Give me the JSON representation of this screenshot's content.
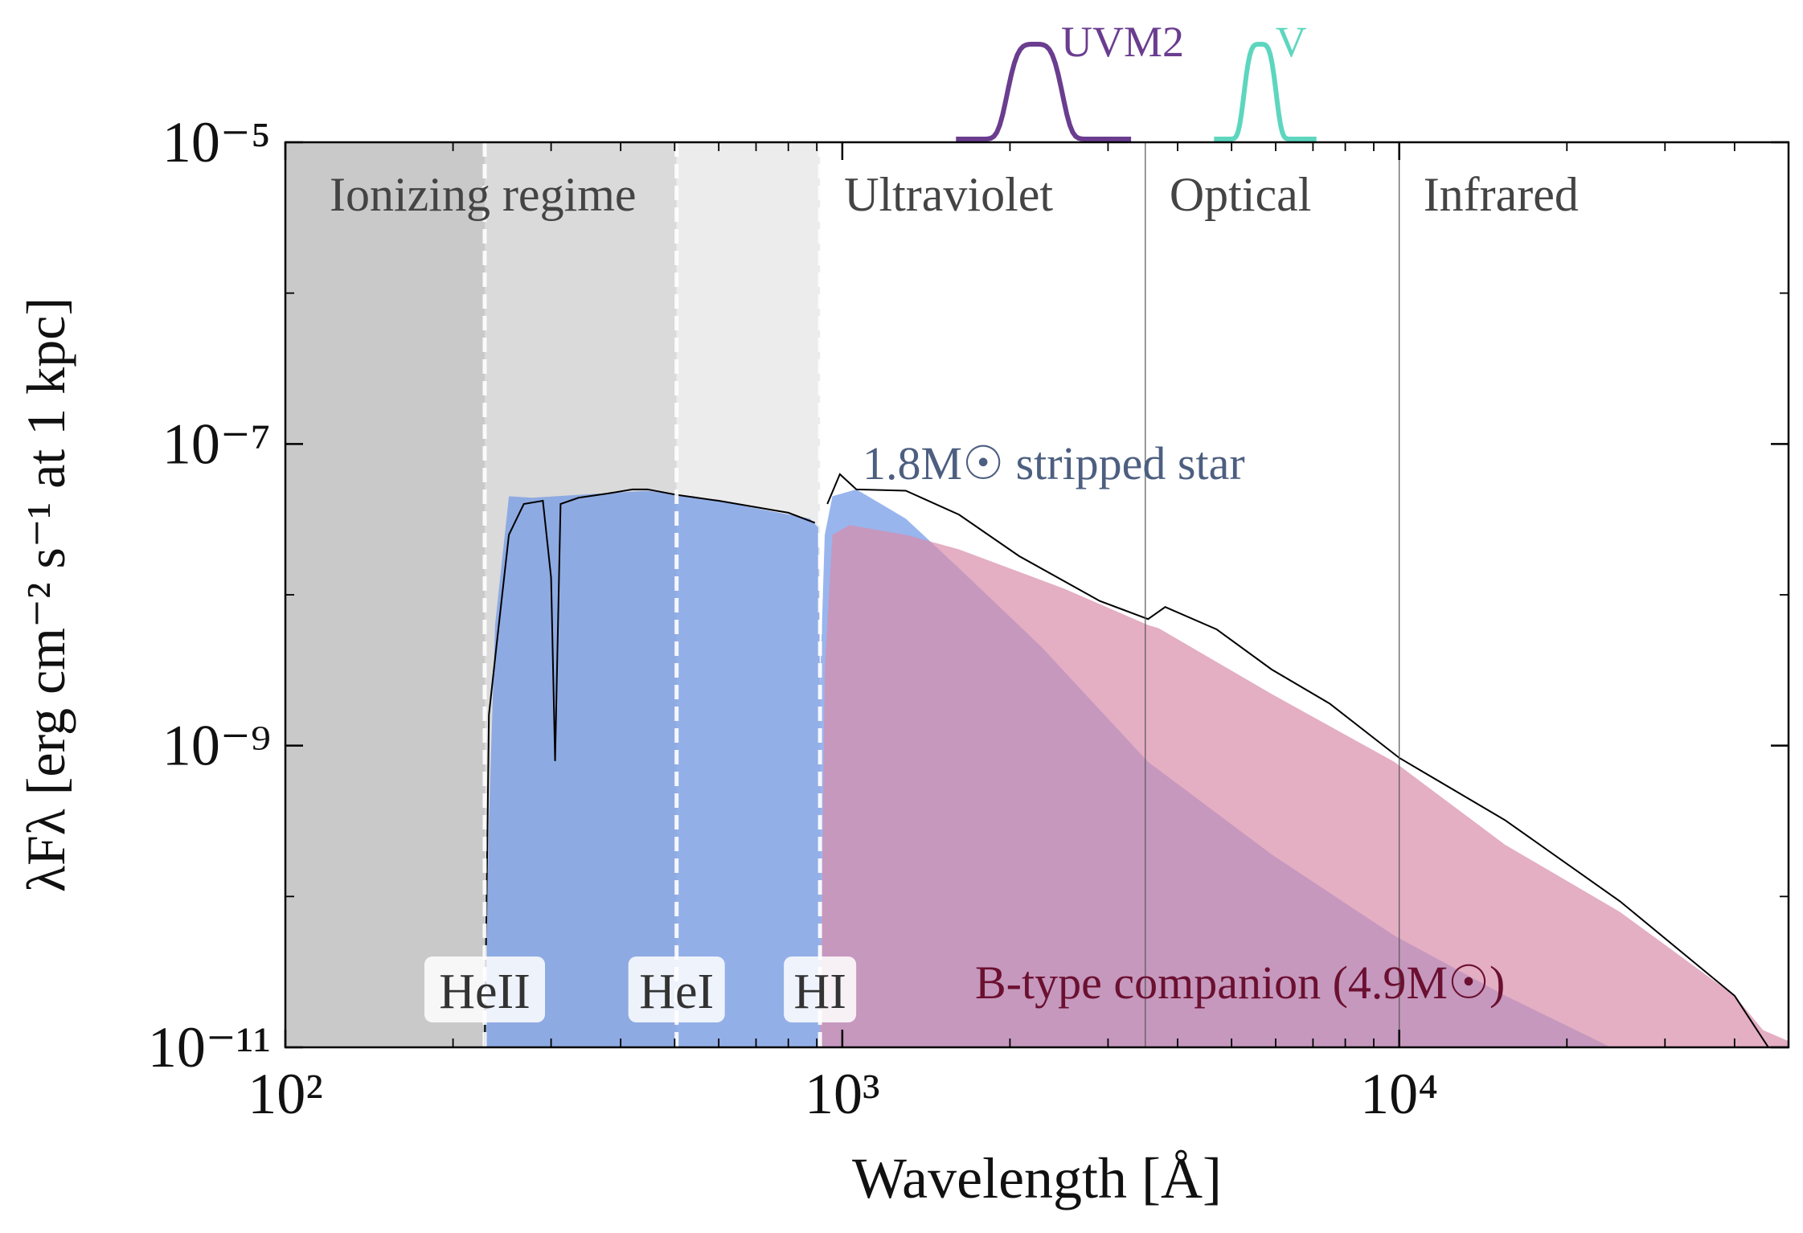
{
  "chart_data": {
    "type": "area",
    "xlabel": "Wavelength [Å]",
    "ylabel": "λFλ [erg cm⁻² s⁻¹ at 1 kpc]",
    "xscale": "log",
    "yscale": "log",
    "xlim": [
      100,
      50000
    ],
    "ylim": [
      1e-11,
      1e-05
    ],
    "xticks": [
      {
        "value": 100,
        "label": "10²"
      },
      {
        "value": 1000,
        "label": "10³"
      },
      {
        "value": 10000,
        "label": "10⁴"
      }
    ],
    "yticks": [
      {
        "value": 1e-11,
        "label": "10⁻¹¹"
      },
      {
        "value": 1e-09,
        "label": "10⁻⁹"
      },
      {
        "value": 1e-07,
        "label": "10⁻⁷"
      },
      {
        "value": 1e-05,
        "label": "10⁻⁵"
      }
    ],
    "xminorticks": [
      200,
      300,
      400,
      500,
      600,
      700,
      800,
      900,
      2000,
      3000,
      4000,
      5000,
      6000,
      7000,
      8000,
      9000,
      20000,
      30000,
      40000
    ],
    "yminorticks": [
      1e-10,
      1e-08,
      1e-06
    ],
    "shading": [
      {
        "x": [
          100,
          228
        ],
        "color": "#c9c9c9"
      },
      {
        "x": [
          228,
          504
        ],
        "color": "#dadada"
      },
      {
        "x": [
          504,
          912
        ],
        "color": "#ececec"
      }
    ],
    "bands": [
      {
        "label": "Ionizing regime",
        "x": [
          100,
          912
        ],
        "divider": false
      },
      {
        "label": "Ultraviolet",
        "x": [
          912,
          3500
        ],
        "divider": false
      },
      {
        "label": "Optical",
        "x": [
          3500,
          10000
        ],
        "divider": true
      },
      {
        "label": "Infrared",
        "x": [
          10000,
          50000
        ],
        "divider": true
      }
    ],
    "edges": [
      {
        "label": "HeII",
        "x": 228
      },
      {
        "label": "HeI",
        "x": 504
      },
      {
        "label": "HI",
        "x": 912
      }
    ],
    "filters": [
      {
        "name": "UVM2",
        "color": "#6a3d8f",
        "x": [
          1600,
          3300
        ]
      },
      {
        "name": "V",
        "color": "#5ed6bf",
        "x": [
          4650,
          7100
        ]
      }
    ],
    "series": [
      {
        "name": "1.8M☉ stripped star",
        "color": "#6e96e6",
        "label_color": "#4d5f80",
        "x": [
          228,
          232,
          238,
          252,
          277,
          336,
          447,
          504,
          540,
          875,
          905,
          912,
          930,
          960,
          1060,
          1300,
          1620,
          2280,
          3540,
          5900,
          9800,
          15500,
          24000
        ],
        "values": [
          1e-11,
          3.2e-10,
          6.3e-09,
          4.5e-08,
          4.4e-08,
          4.6e-08,
          4.9e-08,
          4.6e-08,
          4.5e-08,
          3.2e-08,
          2.8e-08,
          2.5e-09,
          2.5e-08,
          4.5e-08,
          5e-08,
          3.2e-08,
          1.5e-08,
          4.5e-09,
          7.8e-10,
          1.9e-10,
          5.5e-11,
          2.2e-11,
          1e-11
        ]
      },
      {
        "name": "B-type companion (4.9M☉)",
        "color": "#d98caa",
        "label_color": "#6b1030",
        "x": [
          912,
          930,
          960,
          1030,
          1300,
          1620,
          2500,
          3540,
          3700,
          5900,
          9800,
          15500,
          24900,
          40000,
          45000,
          50000
        ],
        "values": [
          1e-11,
          3.2e-09,
          2.5e-08,
          2.9e-08,
          2.5e-08,
          2e-08,
          1.1e-08,
          6.3e-09,
          6e-09,
          2.2e-09,
          7.8e-10,
          2.2e-10,
          7.9e-11,
          2.2e-11,
          1.3e-11,
          1.1e-11
        ]
      },
      {
        "color": "#000000",
        "x": [
          228,
          232,
          240,
          252,
          268,
          290,
          300,
          305,
          312,
          336,
          380,
          420,
          447,
          504,
          600,
          800,
          893,
          912,
          940,
          990,
          1060,
          1300,
          1620,
          2080,
          2900,
          3540,
          3800,
          4700,
          5900,
          7500,
          10000,
          15500,
          24900,
          40000,
          46000
        ],
        "values": [
          1e-11,
          1.6e-09,
          5e-09,
          2.5e-08,
          4e-08,
          4.2e-08,
          1.3e-08,
          7.9e-10,
          4e-08,
          4.4e-08,
          4.7e-08,
          5e-08,
          5e-08,
          4.6e-08,
          4.2e-08,
          3.5e-08,
          3e-08,
          null,
          4e-08,
          6.3e-08,
          5e-08,
          4.9e-08,
          3.4e-08,
          1.8e-08,
          9.1e-09,
          6.9e-09,
          8.3e-09,
          5.9e-09,
          3.2e-09,
          1.9e-09,
          8.3e-10,
          3.2e-10,
          9.3e-11,
          2.2e-11,
          1e-11
        ]
      }
    ]
  }
}
